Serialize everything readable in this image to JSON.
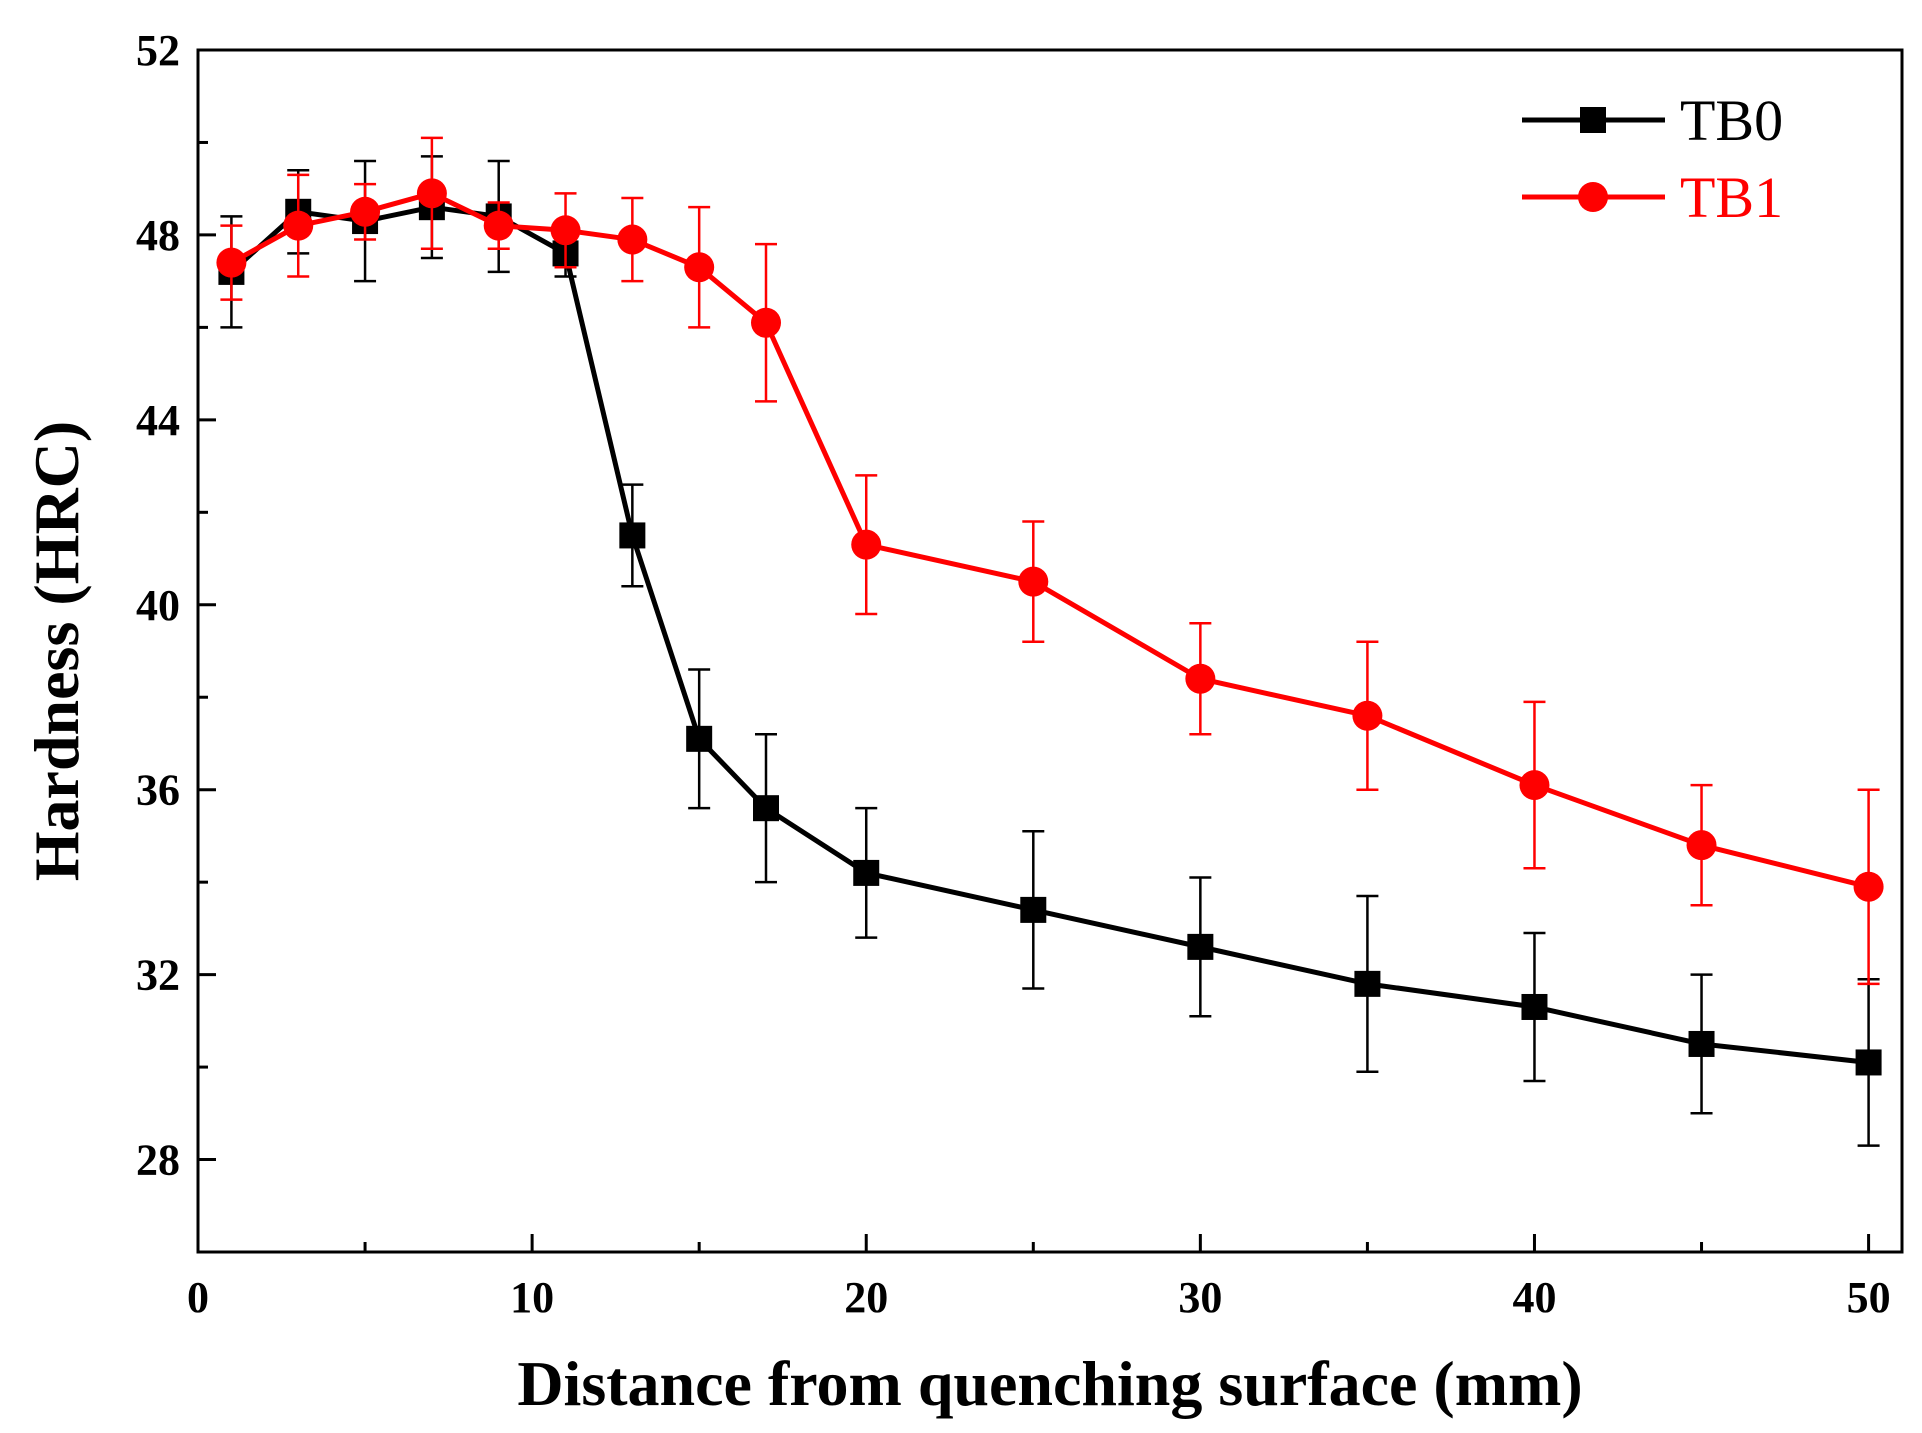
{
  "chart_data": {
    "type": "line",
    "title": "",
    "xlabel": "Distance from quenching surface (mm)",
    "ylabel": "Hardness (HRC)",
    "xlim": [
      0,
      51
    ],
    "ylim": [
      26,
      52
    ],
    "xticks": [
      0,
      10,
      20,
      30,
      40,
      50
    ],
    "yticks": [
      28,
      32,
      36,
      40,
      44,
      48,
      52
    ],
    "legend_position": "top-right",
    "series": [
      {
        "name": "TB0",
        "color": "#000000",
        "marker": "square",
        "x": [
          1,
          3,
          5,
          7,
          9,
          11,
          13,
          15,
          17,
          20,
          25,
          30,
          35,
          40,
          45,
          50
        ],
        "y": [
          47.2,
          48.5,
          48.3,
          48.6,
          48.4,
          47.6,
          41.5,
          37.1,
          35.6,
          34.2,
          33.4,
          32.6,
          31.8,
          31.3,
          30.5,
          30.1
        ],
        "error": [
          1.2,
          0.9,
          1.3,
          1.1,
          1.2,
          0.5,
          1.1,
          1.5,
          1.6,
          1.4,
          1.7,
          1.5,
          1.9,
          1.6,
          1.5,
          1.8
        ]
      },
      {
        "name": "TB1",
        "color": "#ff0000",
        "marker": "circle",
        "x": [
          1,
          3,
          5,
          7,
          9,
          11,
          13,
          15,
          17,
          20,
          25,
          30,
          35,
          40,
          45,
          50
        ],
        "y": [
          47.4,
          48.2,
          48.5,
          48.9,
          48.2,
          48.1,
          47.9,
          47.3,
          46.1,
          41.3,
          40.5,
          38.4,
          37.6,
          36.1,
          34.8,
          33.9
        ],
        "error": [
          0.8,
          1.1,
          0.6,
          1.2,
          0.5,
          0.8,
          0.9,
          1.3,
          1.7,
          1.5,
          1.3,
          1.2,
          1.6,
          1.8,
          1.3,
          2.1
        ]
      }
    ]
  }
}
